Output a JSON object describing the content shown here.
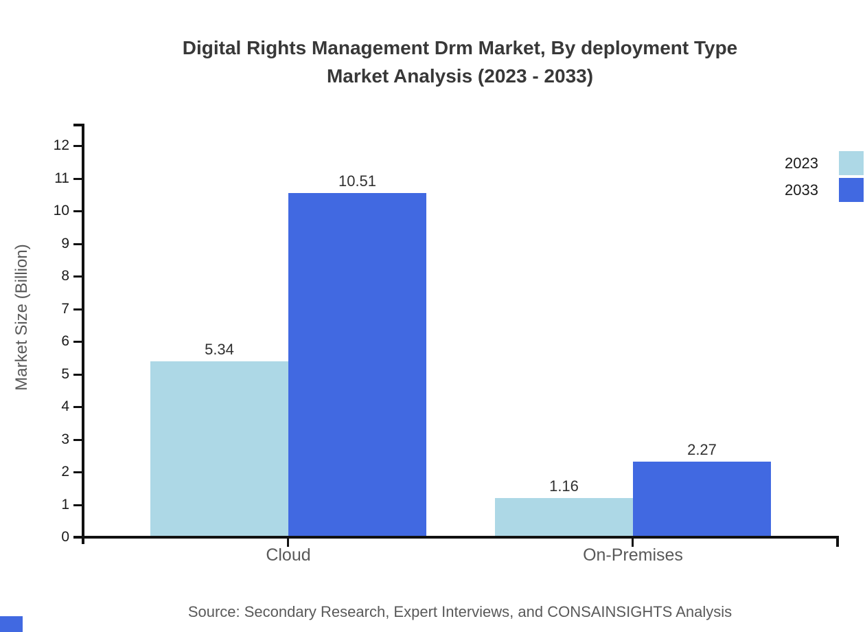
{
  "title": {
    "line1": "Digital Rights Management Drm Market, By deployment Type",
    "line2": "Market Analysis (2023 - 2033)"
  },
  "source_note": "Source: Secondary Research, Expert Interviews, and CONSAINSIGHTS Analysis",
  "colors": {
    "series_2023": "#ADD8E6",
    "series_2033": "#4169E1",
    "axis": "#111111",
    "brand_mark": "#4169E1"
  },
  "chart_data": {
    "type": "bar",
    "title": "Digital Rights Management Drm Market, By deployment Type Market Analysis (2023 - 2033)",
    "categories": [
      "Cloud",
      "On-Premises"
    ],
    "series": [
      {
        "name": "2023",
        "color": "#ADD8E6",
        "values": [
          5.34,
          1.16
        ]
      },
      {
        "name": "2033",
        "color": "#4169E1",
        "values": [
          10.51,
          2.27
        ]
      }
    ],
    "value_labels": [
      [
        "5.34",
        "1.16"
      ],
      [
        "10.51",
        "2.27"
      ]
    ],
    "xlabel": "",
    "ylabel": "Market Size (Billion)",
    "ylim": [
      0,
      12
    ],
    "yticks": [
      0,
      1,
      2,
      3,
      4,
      5,
      6,
      7,
      8,
      9,
      10,
      11,
      12
    ],
    "grid": false,
    "legend_position": "top-right",
    "legend_entries": [
      "2023",
      "2033"
    ]
  }
}
